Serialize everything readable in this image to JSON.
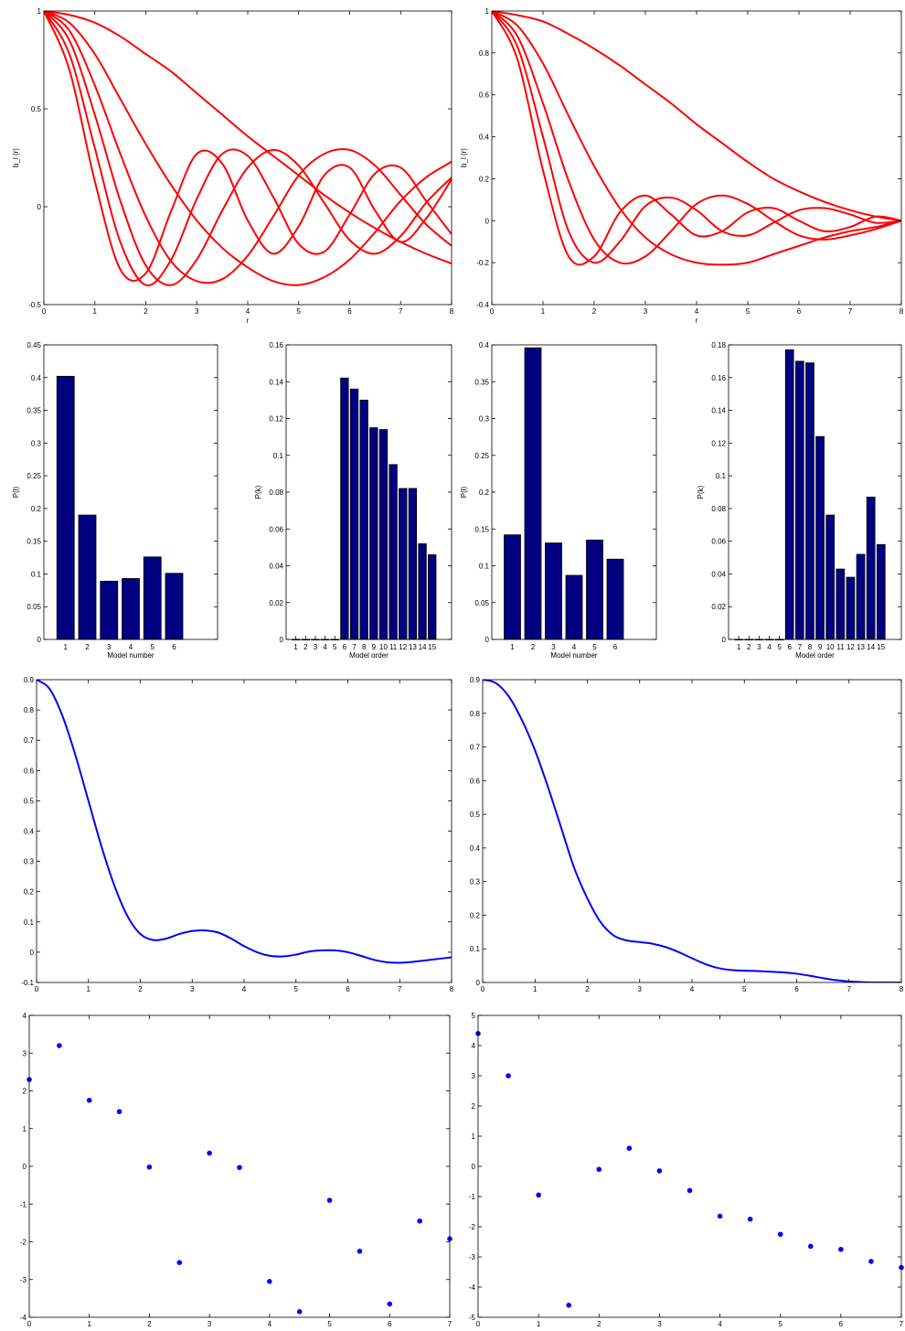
{
  "chart_data": [
    {
      "type": "line",
      "xlabel": "r",
      "ylabel": "b_l (r)",
      "xlim": [
        0,
        8
      ],
      "ylim": [
        -0.5,
        1
      ],
      "xticks": [
        0,
        1,
        2,
        3,
        4,
        5,
        6,
        7,
        8
      ],
      "yticks": [
        -0.5,
        0,
        0.5,
        1
      ],
      "line_color": "#ff0000",
      "series": [
        {
          "x": [
            0,
            0.5,
            1,
            1.5,
            2,
            2.5,
            3,
            3.5,
            4,
            4.5,
            5,
            5.5,
            6,
            6.5,
            7,
            7.5,
            8
          ],
          "y": [
            1,
            0.98,
            0.94,
            0.87,
            0.78,
            0.69,
            0.58,
            0.47,
            0.36,
            0.26,
            0.16,
            0.06,
            -0.03,
            -0.11,
            -0.18,
            -0.24,
            -0.29
          ]
        },
        {
          "x": [
            0,
            0.5,
            1,
            1.5,
            2,
            2.5,
            3,
            3.5,
            4,
            4.5,
            5,
            5.5,
            6,
            6.5,
            7,
            7.5,
            8
          ],
          "y": [
            1,
            0.94,
            0.78,
            0.55,
            0.32,
            0.11,
            -0.07,
            -0.21,
            -0.31,
            -0.38,
            -0.4,
            -0.36,
            -0.27,
            -0.13,
            0.03,
            0.15,
            0.23
          ]
        },
        {
          "x": [
            0,
            0.5,
            1,
            1.5,
            2,
            2.5,
            3,
            3.5,
            4,
            4.5,
            5,
            5.5,
            6,
            6.5,
            7,
            7.5,
            8
          ],
          "y": [
            1,
            0.9,
            0.62,
            0.27,
            -0.05,
            -0.28,
            -0.38,
            -0.37,
            -0.25,
            -0.05,
            0.16,
            0.27,
            0.29,
            0.21,
            0.06,
            -0.09,
            -0.2
          ]
        },
        {
          "x": [
            0,
            0.5,
            1,
            1.5,
            2,
            2.5,
            3,
            3.5,
            4,
            4.5,
            5,
            5.5,
            6,
            6.5,
            7,
            7.5,
            8
          ],
          "y": [
            1,
            0.85,
            0.47,
            0.03,
            -0.3,
            -0.4,
            -0.27,
            -0.02,
            0.2,
            0.29,
            0.21,
            0.02,
            -0.17,
            -0.24,
            -0.15,
            0.02,
            0.15
          ]
        },
        {
          "x": [
            0,
            0.5,
            1,
            1.5,
            2,
            2.5,
            3,
            3.5,
            4,
            4.5,
            5,
            5.5,
            6,
            6.5,
            7,
            7.5,
            8
          ],
          "y": [
            1,
            0.78,
            0.3,
            -0.18,
            -0.4,
            -0.27,
            0.04,
            0.27,
            0.26,
            0.05,
            -0.19,
            -0.23,
            -0.04,
            0.17,
            0.2,
            0.03,
            -0.14
          ]
        },
        {
          "x": [
            0,
            0.5,
            1,
            1.5,
            2,
            2.5,
            3,
            3.5,
            4,
            4.5,
            5,
            5.5,
            6,
            6.5,
            7,
            7.5,
            8
          ],
          "y": [
            1,
            0.7,
            0.13,
            -0.32,
            -0.34,
            -0.02,
            0.27,
            0.22,
            -0.07,
            -0.24,
            -0.1,
            0.16,
            0.2,
            -0.02,
            -0.18,
            -0.06,
            0.14
          ]
        }
      ]
    },
    {
      "type": "line",
      "xlabel": "r",
      "ylabel": "b_l (r)",
      "xlim": [
        0,
        8
      ],
      "ylim": [
        -0.4,
        1
      ],
      "xticks": [
        0,
        1,
        2,
        3,
        4,
        5,
        6,
        7,
        8
      ],
      "yticks": [
        -0.4,
        -0.2,
        0,
        0.2,
        0.4,
        0.6,
        0.8,
        1
      ],
      "line_color": "#ff0000",
      "series": [
        {
          "x": [
            0,
            0.5,
            1,
            1.5,
            2,
            2.5,
            3,
            3.5,
            4,
            4.5,
            5,
            5.5,
            6,
            6.5,
            7,
            7.5,
            8
          ],
          "y": [
            1,
            0.98,
            0.95,
            0.89,
            0.82,
            0.74,
            0.65,
            0.56,
            0.46,
            0.37,
            0.28,
            0.2,
            0.14,
            0.09,
            0.05,
            0.02,
            0
          ]
        },
        {
          "x": [
            0,
            0.5,
            1,
            1.5,
            2,
            2.5,
            3,
            3.5,
            4,
            4.5,
            5,
            5.5,
            6,
            6.5,
            7,
            7.5,
            8
          ],
          "y": [
            1,
            0.93,
            0.75,
            0.5,
            0.26,
            0.06,
            -0.08,
            -0.16,
            -0.2,
            -0.21,
            -0.2,
            -0.16,
            -0.12,
            -0.08,
            -0.05,
            -0.03,
            0
          ]
        },
        {
          "x": [
            0,
            0.5,
            1,
            1.5,
            2,
            2.5,
            3,
            3.5,
            4,
            4.5,
            5,
            5.5,
            6,
            6.5,
            7,
            7.5,
            8
          ],
          "y": [
            1,
            0.88,
            0.56,
            0.19,
            -0.09,
            -0.2,
            -0.17,
            -0.05,
            0.08,
            0.12,
            0.08,
            0,
            -0.07,
            -0.09,
            -0.07,
            -0.04,
            0
          ]
        },
        {
          "x": [
            0,
            0.5,
            1,
            1.5,
            2,
            2.5,
            3,
            3.5,
            4,
            4.5,
            5,
            5.5,
            6,
            6.5,
            7,
            7.5,
            8
          ],
          "y": [
            1,
            0.83,
            0.4,
            -0.05,
            -0.2,
            -0.1,
            0.07,
            0.11,
            0.05,
            -0.05,
            -0.07,
            -0.01,
            0.05,
            0.06,
            0.03,
            -0.01,
            0
          ]
        },
        {
          "x": [
            0,
            0.5,
            1,
            1.5,
            2,
            2.5,
            3,
            3.5,
            4,
            4.5,
            5,
            5.5,
            6,
            6.5,
            7,
            7.5,
            8
          ],
          "y": [
            1,
            0.77,
            0.24,
            -0.17,
            -0.17,
            0.04,
            0.12,
            0.03,
            -0.07,
            -0.05,
            0.04,
            0.06,
            0,
            -0.05,
            -0.03,
            0.02,
            0
          ]
        }
      ]
    },
    {
      "type": "bar",
      "xlabel": "Model number",
      "ylabel": "P(l)",
      "categories": [
        "1",
        "2",
        "3",
        "4",
        "5",
        "6"
      ],
      "values": [
        0.402,
        0.19,
        0.089,
        0.093,
        0.126,
        0.101
      ],
      "ylim": [
        0,
        0.45
      ],
      "yticks": [
        0,
        0.05,
        0.1,
        0.15,
        0.2,
        0.25,
        0.3,
        0.35,
        0.4,
        0.45
      ],
      "bar_color": "#000080"
    },
    {
      "type": "bar",
      "xlabel": "Model order",
      "ylabel": "P(k)",
      "categories": [
        "1",
        "2",
        "3",
        "4",
        "5",
        "6",
        "7",
        "8",
        "9",
        "10",
        "11",
        "12",
        "13",
        "14",
        "15"
      ],
      "values": [
        0,
        0,
        0,
        0,
        0,
        0.142,
        0.136,
        0.13,
        0.115,
        0.114,
        0.095,
        0.082,
        0.082,
        0.052,
        0.046
      ],
      "ylim": [
        0,
        0.16
      ],
      "yticks": [
        0,
        0.02,
        0.04,
        0.06,
        0.08,
        0.1,
        0.12,
        0.14,
        0.16
      ],
      "bar_color": "#000080"
    },
    {
      "type": "bar",
      "xlabel": "Model number",
      "ylabel": "P(l)",
      "categories": [
        "1",
        "2",
        "3",
        "4",
        "5",
        "6"
      ],
      "values": [
        0.142,
        0.396,
        0.131,
        0.087,
        0.135,
        0.109
      ],
      "ylim": [
        0,
        0.4
      ],
      "yticks": [
        0,
        0.05,
        0.1,
        0.15,
        0.2,
        0.25,
        0.3,
        0.35,
        0.4
      ],
      "bar_color": "#000080"
    },
    {
      "type": "bar",
      "xlabel": "Model order",
      "ylabel": "P(k)",
      "categories": [
        "1",
        "2",
        "3",
        "4",
        "5",
        "6",
        "7",
        "8",
        "9",
        "10",
        "11",
        "12",
        "13",
        "14",
        "15"
      ],
      "values": [
        0,
        0,
        0,
        0,
        0,
        0.177,
        0.17,
        0.169,
        0.124,
        0.076,
        0.043,
        0.038,
        0.052,
        0.087,
        0.058
      ],
      "ylim": [
        0,
        0.18
      ],
      "yticks": [
        0,
        0.02,
        0.04,
        0.06,
        0.08,
        0.1,
        0.12,
        0.14,
        0.16,
        0.18
      ],
      "bar_color": "#000080"
    },
    {
      "type": "line",
      "xlim": [
        0,
        8
      ],
      "ylim": [
        -0.1,
        0.9
      ],
      "xticks": [
        0,
        1,
        2,
        3,
        4,
        5,
        6,
        7,
        8
      ],
      "yticks": [
        -0.1,
        0,
        0.1,
        0.2,
        0.3,
        0.4,
        0.5,
        0.6,
        0.7,
        0.8,
        0.9
      ],
      "line_color": "#0000ff",
      "series": [
        {
          "x": [
            0,
            0.25,
            0.5,
            0.75,
            1,
            1.25,
            1.5,
            1.75,
            2,
            2.25,
            2.5,
            2.75,
            3,
            3.25,
            3.5,
            3.75,
            4,
            4.25,
            4.5,
            4.75,
            5,
            5.25,
            5.5,
            5.75,
            6,
            6.25,
            6.5,
            6.75,
            7,
            7.25,
            7.5,
            7.75,
            8
          ],
          "y": [
            0.9,
            0.87,
            0.78,
            0.65,
            0.5,
            0.35,
            0.22,
            0.12,
            0.06,
            0.04,
            0.045,
            0.06,
            0.07,
            0.072,
            0.065,
            0.045,
            0.02,
            0.0,
            -0.012,
            -0.014,
            -0.008,
            0.002,
            0.006,
            0.006,
            0.0,
            -0.012,
            -0.025,
            -0.033,
            -0.035,
            -0.032,
            -0.027,
            -0.022,
            -0.017
          ]
        }
      ]
    },
    {
      "type": "line",
      "xlim": [
        0,
        8
      ],
      "ylim": [
        0,
        0.9
      ],
      "xticks": [
        0,
        1,
        2,
        3,
        4,
        5,
        6,
        7,
        8
      ],
      "yticks": [
        0,
        0.1,
        0.2,
        0.3,
        0.4,
        0.5,
        0.6,
        0.7,
        0.8,
        0.9
      ],
      "line_color": "#0000ff",
      "series": [
        {
          "x": [
            0,
            0.25,
            0.5,
            0.75,
            1,
            1.25,
            1.5,
            1.75,
            2,
            2.25,
            2.5,
            2.75,
            3,
            3.25,
            3.5,
            3.75,
            4,
            4.25,
            4.5,
            4.75,
            5,
            5.25,
            5.5,
            5.75,
            6,
            6.25,
            6.5,
            6.75,
            7,
            7.25,
            7.5,
            7.75,
            8
          ],
          "y": [
            0.9,
            0.89,
            0.85,
            0.78,
            0.69,
            0.58,
            0.46,
            0.34,
            0.25,
            0.18,
            0.14,
            0.125,
            0.12,
            0.115,
            0.105,
            0.09,
            0.072,
            0.055,
            0.043,
            0.037,
            0.035,
            0.034,
            0.032,
            0.03,
            0.026,
            0.02,
            0.013,
            0.007,
            0.003,
            0.001,
            0.0,
            0.0,
            0.0
          ]
        }
      ]
    },
    {
      "type": "scatter",
      "xlim": [
        0,
        7
      ],
      "ylim": [
        -4,
        4
      ],
      "xticks": [
        0,
        1,
        2,
        3,
        4,
        5,
        6,
        7
      ],
      "yticks": [
        -4,
        -3,
        -2,
        -1,
        0,
        1,
        2,
        3,
        4
      ],
      "point_color": "#0000ff",
      "x": [
        0,
        0.5,
        1,
        1.5,
        2,
        2.5,
        3,
        3.5,
        4,
        4.5,
        5,
        5.5,
        6,
        6.5,
        7
      ],
      "y": [
        2.3,
        3.2,
        1.75,
        1.45,
        -0.02,
        -2.55,
        0.35,
        -0.03,
        -3.05,
        -3.85,
        -0.9,
        -2.25,
        -3.65,
        -1.45,
        -1.92
      ]
    },
    {
      "type": "scatter",
      "xlim": [
        0,
        7
      ],
      "ylim": [
        -5,
        5
      ],
      "xticks": [
        0,
        1,
        2,
        3,
        4,
        5,
        6,
        7
      ],
      "yticks": [
        -5,
        -4,
        -3,
        -2,
        -1,
        0,
        1,
        2,
        3,
        4,
        5
      ],
      "point_color": "#0000ff",
      "x": [
        0,
        0.5,
        1,
        1.5,
        2,
        2.5,
        3,
        3.5,
        4,
        4.5,
        5,
        5.5,
        6,
        6.5,
        7
      ],
      "y": [
        4.4,
        3.0,
        -0.95,
        -4.6,
        -0.1,
        0.6,
        -0.15,
        -0.8,
        -1.65,
        -1.75,
        -2.25,
        -2.65,
        -2.75,
        -3.15,
        -3.35
      ]
    }
  ]
}
